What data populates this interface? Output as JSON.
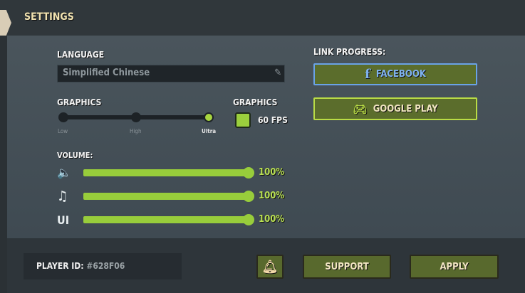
{
  "header": {
    "title": "SETTINGS"
  },
  "language": {
    "label": "LANGUAGE",
    "value": "Simplified Chinese"
  },
  "graphics_quality": {
    "label": "GRAPHICS",
    "levels": [
      "Low",
      "High",
      "Ultra"
    ],
    "selected": "Ultra"
  },
  "graphics_fps": {
    "label": "GRAPHICS",
    "checked": true,
    "option": "60 FPS"
  },
  "volume": {
    "label": "VOLUME:",
    "rows": [
      {
        "icon": "speaker-icon",
        "symbol": "🔈",
        "value": "100%",
        "level": 1.0
      },
      {
        "icon": "music-note-icon",
        "symbol": "♫",
        "value": "100%",
        "level": 1.0
      },
      {
        "icon": "ui-icon",
        "symbol": "UI",
        "value": "100%",
        "level": 1.0
      }
    ]
  },
  "link_progress": {
    "label": "LINK PROGRESS:",
    "facebook": "FACEBOOK",
    "google_play": "GOOGLE PLAY"
  },
  "footer": {
    "player_id_label": "PLAYER ID:",
    "player_id": "#628F06",
    "support": "SUPPORT",
    "apply": "APPLY"
  },
  "colors": {
    "accent_green": "#98cd3b",
    "facebook_blue": "#6aa2e6",
    "button_green": "#5b6d2c"
  }
}
